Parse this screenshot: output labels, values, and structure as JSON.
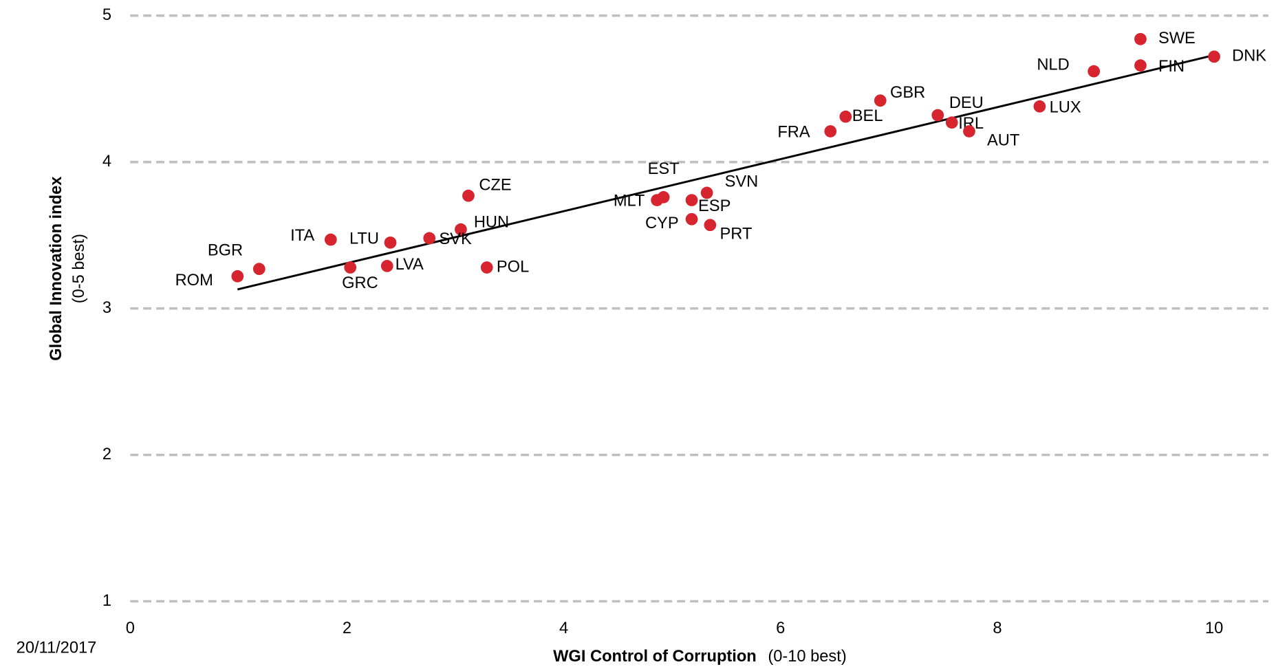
{
  "chart_data": {
    "type": "scatter",
    "date": "20/11/2017",
    "x_label": "WGI Control of Corruption",
    "x_label_note": "(0-10 best)",
    "y_label": "Global Innovation index",
    "y_label_note": "(0-5 best)",
    "color": "#d7252f",
    "grid": true,
    "xlim": [
      0,
      10.5
    ],
    "xticks": [
      0,
      2,
      4,
      6,
      8,
      10
    ],
    "ylim": [
      1,
      5
    ],
    "yticks": [
      1,
      2,
      3,
      4,
      5
    ],
    "labels": [
      "SWE",
      "FIN",
      "DNK",
      "NLD",
      "LUX",
      "GBR",
      "DEU",
      "IRL",
      "AUT",
      "BEL",
      "FRA",
      "SVN",
      "EST",
      "MLT",
      "ESP",
      "CYP",
      "PRT",
      "CZE",
      "HUN",
      "SVK",
      "POL",
      "LTU",
      "LVA",
      "ITA",
      "GRC",
      "BGR",
      "ROM"
    ],
    "x": [
      9.32,
      9.32,
      10.0,
      8.89,
      8.39,
      6.92,
      7.45,
      7.58,
      7.74,
      6.6,
      6.46,
      5.32,
      4.92,
      4.86,
      5.18,
      5.18,
      5.35,
      3.12,
      3.05,
      2.76,
      3.29,
      2.4,
      2.37,
      1.85,
      2.03,
      1.19,
      0.99
    ],
    "values": [
      4.84,
      4.66,
      4.72,
      4.62,
      4.38,
      4.42,
      4.32,
      4.27,
      4.21,
      4.31,
      4.21,
      3.79,
      3.76,
      3.74,
      3.74,
      3.61,
      3.57,
      3.77,
      3.54,
      3.48,
      3.28,
      3.45,
      3.29,
      3.47,
      3.28,
      3.27,
      3.22
    ],
    "trendline": {
      "x": [
        0.99,
        10.0
      ],
      "values": [
        3.13,
        4.73
      ],
      "color": "#000000"
    }
  }
}
